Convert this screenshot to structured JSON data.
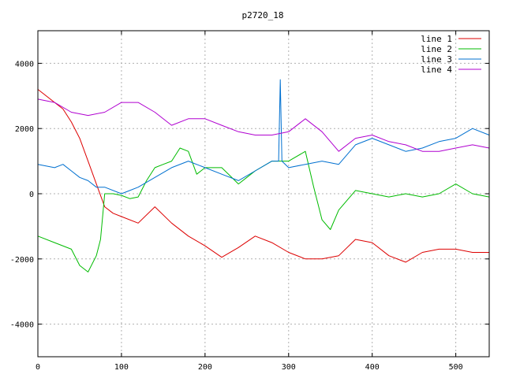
{
  "chart_data": {
    "type": "line",
    "title": "p2720_18",
    "xlabel": "",
    "ylabel": "",
    "xlim": [
      0,
      540
    ],
    "ylim": [
      -5000,
      5000
    ],
    "xticks": [
      0,
      100,
      200,
      300,
      400,
      500
    ],
    "yticks": [
      -4000,
      -2000,
      0,
      2000,
      4000
    ],
    "grid": true,
    "legend_position": "top-right",
    "series": [
      {
        "name": "line 1",
        "color": "#dd0000",
        "x": [
          0,
          20,
          30,
          40,
          50,
          60,
          70,
          80,
          90,
          100,
          120,
          140,
          160,
          180,
          200,
          220,
          240,
          260,
          280,
          300,
          320,
          340,
          360,
          380,
          400,
          420,
          440,
          460,
          480,
          500,
          520,
          540
        ],
        "y": [
          3200,
          2800,
          2600,
          2200,
          1700,
          1000,
          300,
          -400,
          -600,
          -700,
          -900,
          -400,
          -900,
          -1300,
          -1600,
          -1950,
          -1650,
          -1300,
          -1500,
          -1800,
          -2000,
          -2000,
          -1900,
          -1400,
          -1500,
          -1900,
          -2100,
          -1800,
          -1700,
          -1700,
          -1800,
          -1800
        ]
      },
      {
        "name": "line 2",
        "color": "#00bb00",
        "x": [
          0,
          20,
          40,
          50,
          60,
          70,
          75,
          80,
          90,
          100,
          110,
          120,
          130,
          140,
          150,
          160,
          170,
          180,
          190,
          200,
          220,
          240,
          250,
          260,
          280,
          300,
          320,
          330,
          340,
          350,
          360,
          380,
          400,
          420,
          440,
          460,
          480,
          500,
          520,
          540
        ],
        "y": [
          -1300,
          -1500,
          -1700,
          -2200,
          -2400,
          -1900,
          -1400,
          0,
          0,
          -50,
          -150,
          -100,
          400,
          800,
          900,
          1000,
          1400,
          1300,
          600,
          800,
          800,
          300,
          500,
          700,
          1000,
          1000,
          1300,
          200,
          -800,
          -1100,
          -500,
          100,
          0,
          -100,
          0,
          -100,
          0,
          300,
          0,
          -100
        ]
      },
      {
        "name": "line 3",
        "color": "#0070d0",
        "x": [
          0,
          20,
          30,
          40,
          50,
          60,
          70,
          80,
          100,
          110,
          120,
          140,
          160,
          180,
          200,
          220,
          240,
          260,
          280,
          288,
          290,
          292,
          300,
          320,
          340,
          360,
          380,
          400,
          420,
          440,
          460,
          480,
          500,
          520,
          540
        ],
        "y": [
          900,
          800,
          900,
          700,
          500,
          400,
          200,
          200,
          0,
          100,
          200,
          500,
          800,
          1000,
          800,
          600,
          400,
          700,
          1000,
          1000,
          3500,
          1000,
          800,
          900,
          1000,
          900,
          1500,
          1700,
          1500,
          1300,
          1400,
          1600,
          1700,
          2000,
          1800
        ]
      },
      {
        "name": "line 4",
        "color": "#b000d0",
        "x": [
          0,
          20,
          40,
          60,
          80,
          100,
          120,
          140,
          160,
          180,
          200,
          220,
          240,
          260,
          280,
          300,
          320,
          340,
          360,
          380,
          400,
          420,
          440,
          460,
          480,
          500,
          520,
          540
        ],
        "y": [
          2900,
          2800,
          2500,
          2400,
          2500,
          2800,
          2800,
          2500,
          2100,
          2300,
          2300,
          2100,
          1900,
          1800,
          1800,
          1900,
          2300,
          1900,
          1300,
          1700,
          1800,
          1600,
          1500,
          1300,
          1300,
          1400,
          1500,
          1400
        ]
      }
    ]
  }
}
